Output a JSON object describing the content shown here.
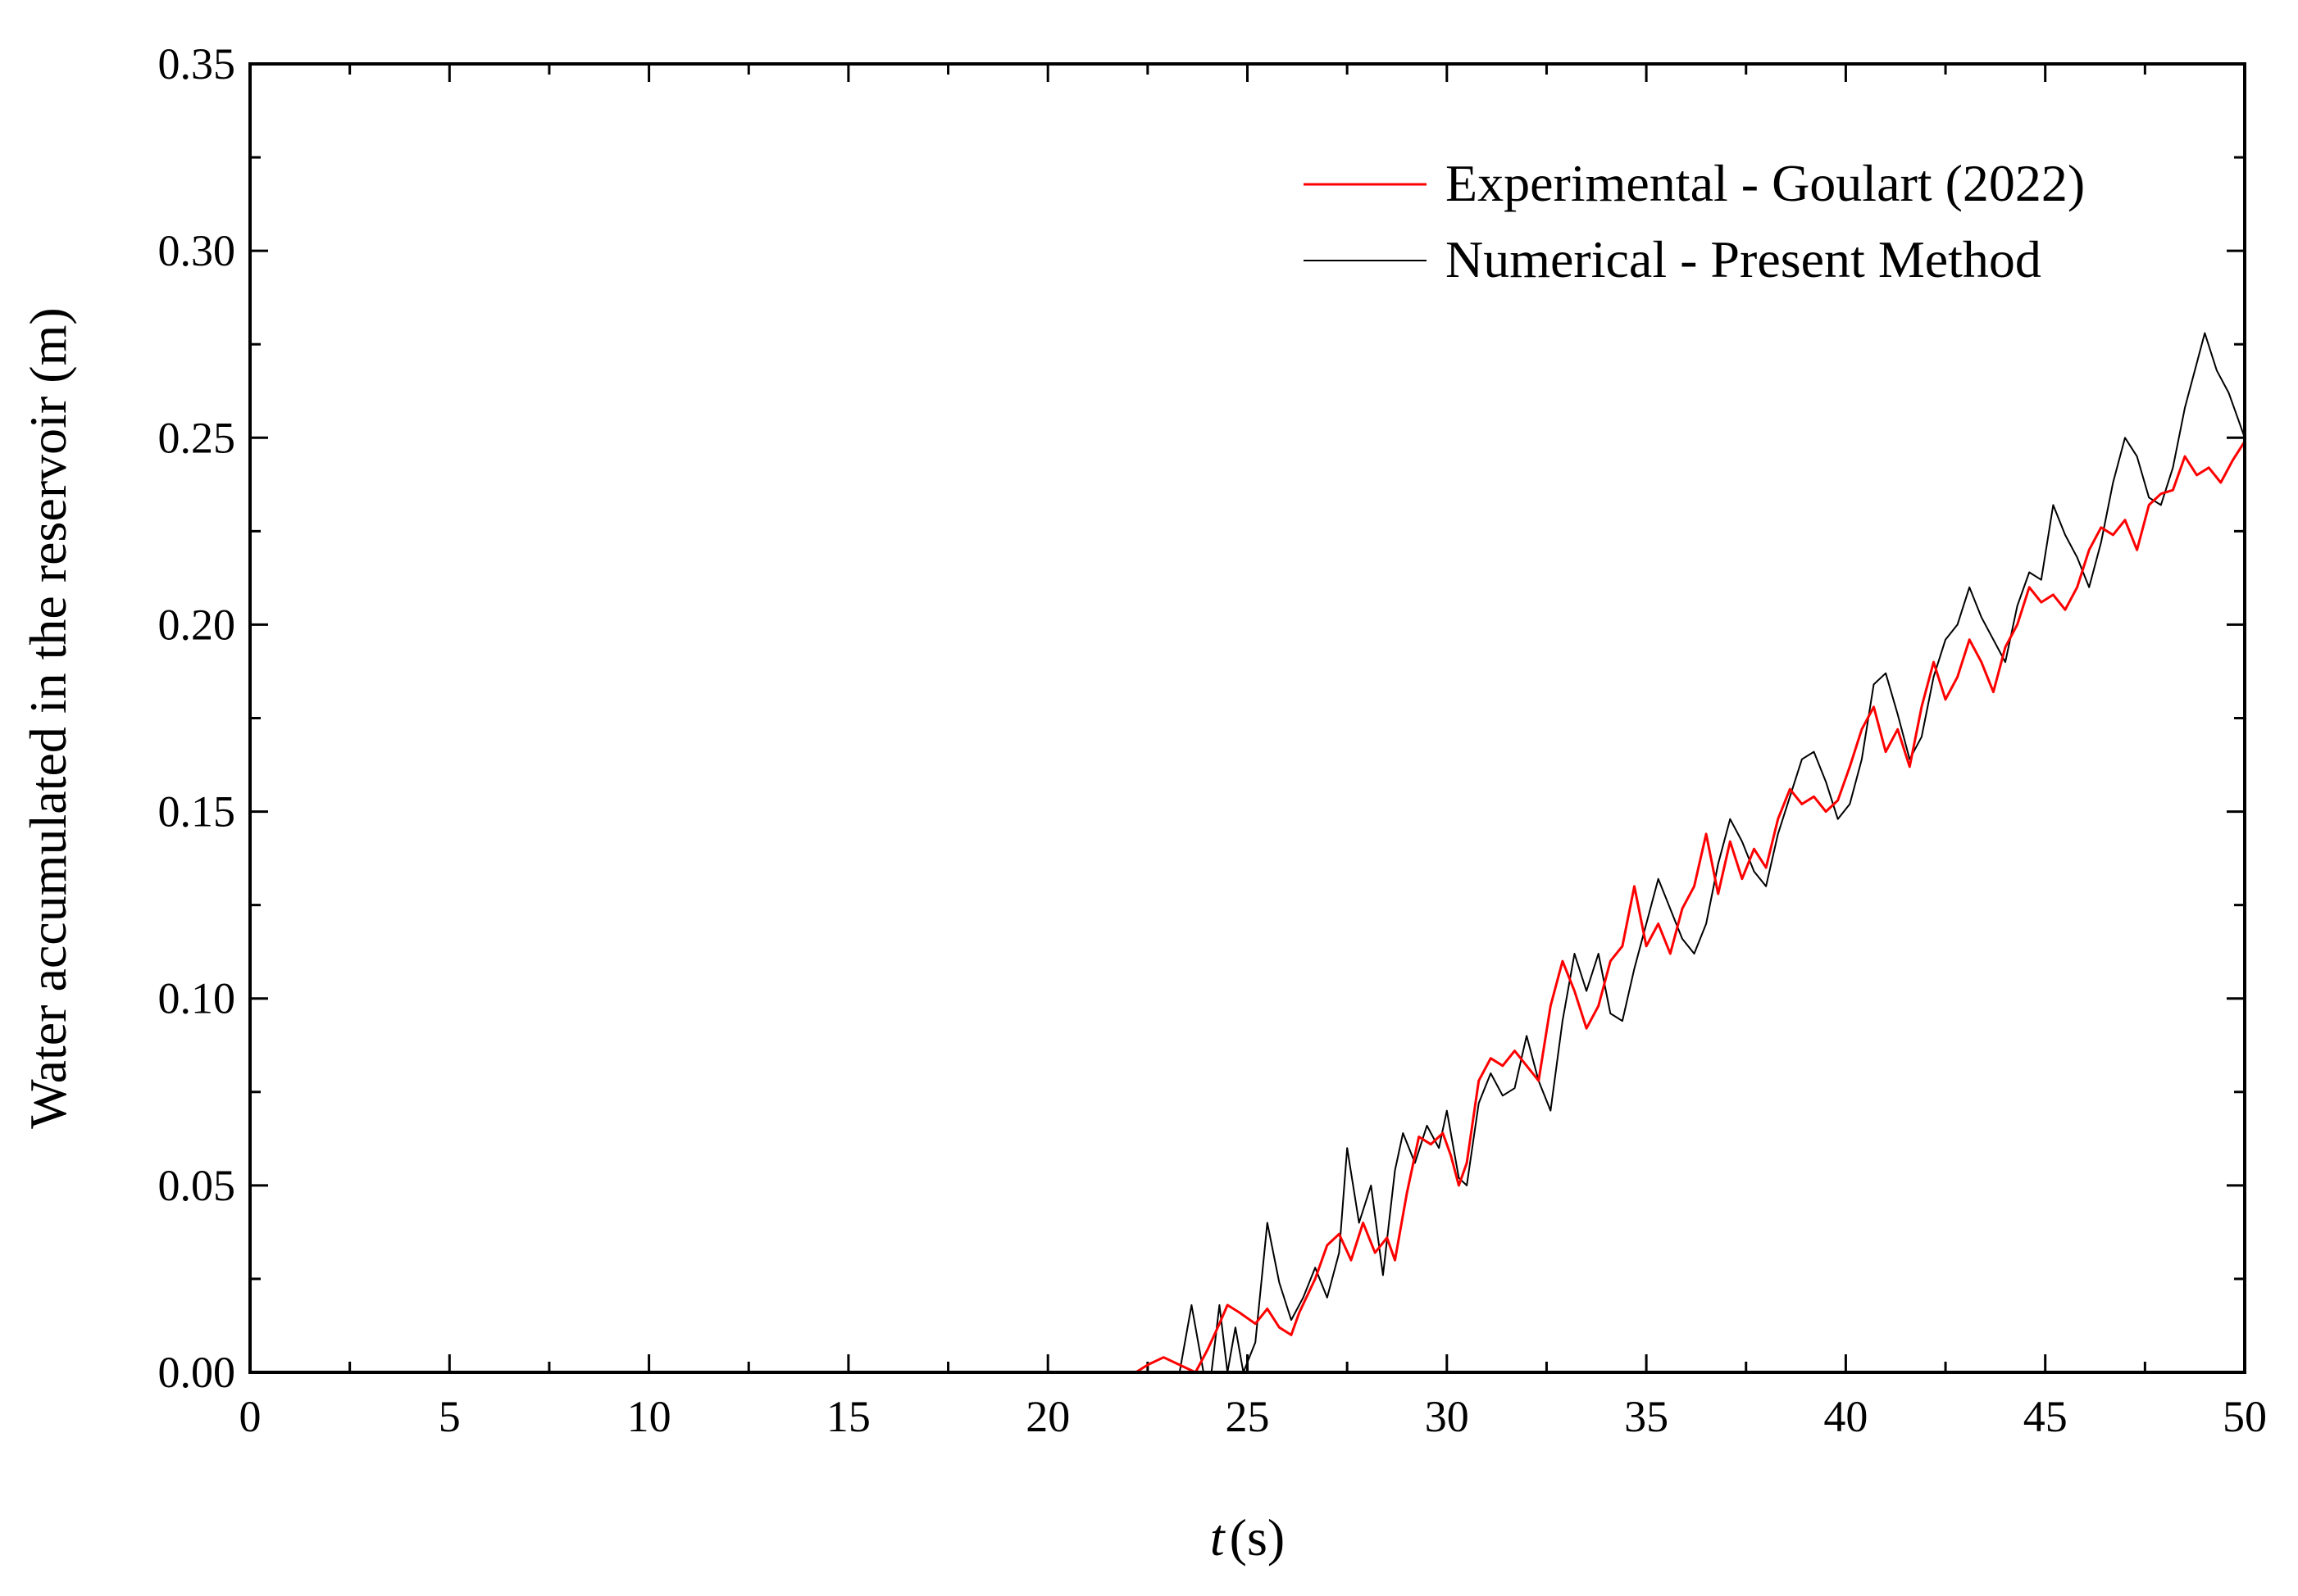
{
  "chart_data": {
    "type": "line",
    "title": "",
    "xlabel": "t",
    "xlabel_unit": "(s)",
    "ylabel": "Water accumulated in the reservoir (m)",
    "xlim": [
      0,
      50
    ],
    "ylim": [
      0,
      0.35
    ],
    "xticks": [
      "0",
      "5",
      "10",
      "15",
      "20",
      "25",
      "30",
      "35",
      "40",
      "45",
      "50"
    ],
    "yticks": [
      "0.00",
      "0.05",
      "0.10",
      "0.15",
      "0.20",
      "0.25",
      "0.30",
      "0.35"
    ],
    "grid": false,
    "legend_position": "top-right",
    "series": [
      {
        "name": "Experimental - Goulart (2022)",
        "color": "#ff0000",
        "points": [
          [
            0,
            0
          ],
          [
            22.2,
            0
          ],
          [
            22.5,
            0.002
          ],
          [
            22.9,
            0.004
          ],
          [
            23.3,
            0.002
          ],
          [
            23.7,
            0
          ],
          [
            24.0,
            0.006
          ],
          [
            24.3,
            0.013
          ],
          [
            24.5,
            0.018
          ],
          [
            24.8,
            0.016
          ],
          [
            25.2,
            0.013
          ],
          [
            25.5,
            0.017
          ],
          [
            25.8,
            0.012
          ],
          [
            26.1,
            0.01
          ],
          [
            26.3,
            0.016
          ],
          [
            26.7,
            0.025
          ],
          [
            27.0,
            0.034
          ],
          [
            27.3,
            0.037
          ],
          [
            27.6,
            0.03
          ],
          [
            27.9,
            0.04
          ],
          [
            28.2,
            0.032
          ],
          [
            28.5,
            0.036
          ],
          [
            28.7,
            0.03
          ],
          [
            29.0,
            0.048
          ],
          [
            29.3,
            0.063
          ],
          [
            29.6,
            0.061
          ],
          [
            29.9,
            0.064
          ],
          [
            30.1,
            0.058
          ],
          [
            30.3,
            0.05
          ],
          [
            30.5,
            0.056
          ],
          [
            30.8,
            0.078
          ],
          [
            31.1,
            0.084
          ],
          [
            31.4,
            0.082
          ],
          [
            31.7,
            0.086
          ],
          [
            32.0,
            0.082
          ],
          [
            32.3,
            0.078
          ],
          [
            32.6,
            0.098
          ],
          [
            32.9,
            0.11
          ],
          [
            33.2,
            0.102
          ],
          [
            33.5,
            0.092
          ],
          [
            33.8,
            0.098
          ],
          [
            34.1,
            0.11
          ],
          [
            34.4,
            0.114
          ],
          [
            34.7,
            0.13
          ],
          [
            35.0,
            0.114
          ],
          [
            35.3,
            0.12
          ],
          [
            35.6,
            0.112
          ],
          [
            35.9,
            0.124
          ],
          [
            36.2,
            0.13
          ],
          [
            36.5,
            0.144
          ],
          [
            36.8,
            0.128
          ],
          [
            37.1,
            0.142
          ],
          [
            37.4,
            0.132
          ],
          [
            37.7,
            0.14
          ],
          [
            38.0,
            0.135
          ],
          [
            38.3,
            0.148
          ],
          [
            38.6,
            0.156
          ],
          [
            38.9,
            0.152
          ],
          [
            39.2,
            0.154
          ],
          [
            39.5,
            0.15
          ],
          [
            39.8,
            0.153
          ],
          [
            40.1,
            0.162
          ],
          [
            40.4,
            0.172
          ],
          [
            40.7,
            0.178
          ],
          [
            41.0,
            0.166
          ],
          [
            41.3,
            0.172
          ],
          [
            41.6,
            0.162
          ],
          [
            41.9,
            0.178
          ],
          [
            42.2,
            0.19
          ],
          [
            42.5,
            0.18
          ],
          [
            42.8,
            0.186
          ],
          [
            43.1,
            0.196
          ],
          [
            43.4,
            0.19
          ],
          [
            43.7,
            0.182
          ],
          [
            44.0,
            0.194
          ],
          [
            44.3,
            0.2
          ],
          [
            44.6,
            0.21
          ],
          [
            44.9,
            0.206
          ],
          [
            45.2,
            0.208
          ],
          [
            45.5,
            0.204
          ],
          [
            45.8,
            0.21
          ],
          [
            46.1,
            0.22
          ],
          [
            46.4,
            0.226
          ],
          [
            46.7,
            0.224
          ],
          [
            47.0,
            0.228
          ],
          [
            47.3,
            0.22
          ],
          [
            47.6,
            0.232
          ],
          [
            47.9,
            0.235
          ],
          [
            48.2,
            0.236
          ],
          [
            48.5,
            0.245
          ],
          [
            48.8,
            0.24
          ],
          [
            49.1,
            0.242
          ],
          [
            49.4,
            0.238
          ],
          [
            49.7,
            0.244
          ],
          [
            50.0,
            0.249
          ]
        ]
      },
      {
        "name": "Numerical - Present Method",
        "color": "#000000",
        "points": [
          [
            0,
            0
          ],
          [
            23.3,
            0
          ],
          [
            23.6,
            0.018
          ],
          [
            23.9,
            0
          ],
          [
            24.1,
            0
          ],
          [
            24.3,
            0.018
          ],
          [
            24.5,
            0
          ],
          [
            24.7,
            0.012
          ],
          [
            24.9,
            0
          ],
          [
            25.2,
            0.008
          ],
          [
            25.5,
            0.04
          ],
          [
            25.8,
            0.024
          ],
          [
            26.1,
            0.014
          ],
          [
            26.4,
            0.02
          ],
          [
            26.7,
            0.028
          ],
          [
            27.0,
            0.02
          ],
          [
            27.3,
            0.032
          ],
          [
            27.5,
            0.06
          ],
          [
            27.8,
            0.04
          ],
          [
            28.1,
            0.05
          ],
          [
            28.4,
            0.026
          ],
          [
            28.7,
            0.054
          ],
          [
            28.9,
            0.064
          ],
          [
            29.2,
            0.056
          ],
          [
            29.5,
            0.066
          ],
          [
            29.8,
            0.06
          ],
          [
            30.0,
            0.07
          ],
          [
            30.3,
            0.052
          ],
          [
            30.5,
            0.05
          ],
          [
            30.8,
            0.072
          ],
          [
            31.1,
            0.08
          ],
          [
            31.4,
            0.074
          ],
          [
            31.7,
            0.076
          ],
          [
            32.0,
            0.09
          ],
          [
            32.3,
            0.078
          ],
          [
            32.6,
            0.07
          ],
          [
            32.9,
            0.094
          ],
          [
            33.2,
            0.112
          ],
          [
            33.5,
            0.102
          ],
          [
            33.8,
            0.112
          ],
          [
            34.1,
            0.096
          ],
          [
            34.4,
            0.094
          ],
          [
            34.7,
            0.108
          ],
          [
            35.0,
            0.12
          ],
          [
            35.3,
            0.132
          ],
          [
            35.6,
            0.124
          ],
          [
            35.9,
            0.116
          ],
          [
            36.2,
            0.112
          ],
          [
            36.5,
            0.12
          ],
          [
            36.8,
            0.136
          ],
          [
            37.1,
            0.148
          ],
          [
            37.4,
            0.142
          ],
          [
            37.7,
            0.134
          ],
          [
            38.0,
            0.13
          ],
          [
            38.3,
            0.144
          ],
          [
            38.6,
            0.154
          ],
          [
            38.9,
            0.164
          ],
          [
            39.2,
            0.166
          ],
          [
            39.5,
            0.158
          ],
          [
            39.8,
            0.148
          ],
          [
            40.1,
            0.152
          ],
          [
            40.4,
            0.164
          ],
          [
            40.7,
            0.184
          ],
          [
            41.0,
            0.187
          ],
          [
            41.3,
            0.176
          ],
          [
            41.6,
            0.164
          ],
          [
            41.9,
            0.17
          ],
          [
            42.2,
            0.186
          ],
          [
            42.5,
            0.196
          ],
          [
            42.8,
            0.2
          ],
          [
            43.1,
            0.21
          ],
          [
            43.4,
            0.202
          ],
          [
            43.7,
            0.196
          ],
          [
            44.0,
            0.19
          ],
          [
            44.3,
            0.205
          ],
          [
            44.6,
            0.214
          ],
          [
            44.9,
            0.212
          ],
          [
            45.2,
            0.232
          ],
          [
            45.5,
            0.224
          ],
          [
            45.8,
            0.218
          ],
          [
            46.1,
            0.21
          ],
          [
            46.4,
            0.222
          ],
          [
            46.7,
            0.238
          ],
          [
            47.0,
            0.25
          ],
          [
            47.3,
            0.245
          ],
          [
            47.6,
            0.234
          ],
          [
            47.9,
            0.232
          ],
          [
            48.2,
            0.242
          ],
          [
            48.5,
            0.258
          ],
          [
            48.8,
            0.27
          ],
          [
            49.0,
            0.278
          ],
          [
            49.3,
            0.268
          ],
          [
            49.6,
            0.262
          ],
          [
            49.8,
            0.256
          ],
          [
            50.0,
            0.25
          ]
        ]
      }
    ]
  }
}
